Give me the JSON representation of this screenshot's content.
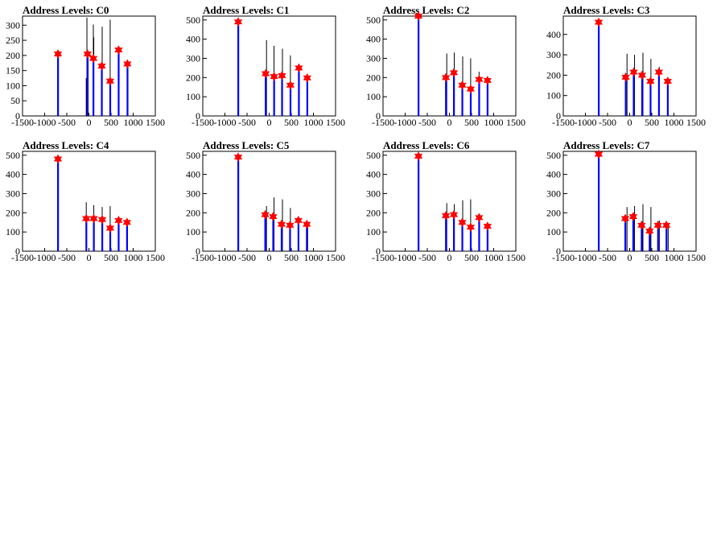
{
  "colors": {
    "histogram": "#0000ff",
    "spike": "#000000",
    "marker": "#ff0000",
    "frame": "#000000"
  },
  "chart_data": [
    {
      "type": "bar",
      "title": "Address Levels: C0",
      "xlim": [
        -1500,
        1500
      ],
      "ylim": [
        0,
        330
      ],
      "xticks": [
        -1500,
        -1000,
        -500,
        0,
        500,
        1000,
        1500
      ],
      "yticks": [
        0,
        50,
        100,
        150,
        200,
        250,
        300
      ],
      "peaks": [
        {
          "x": -700,
          "y": 205
        },
        {
          "x": -30,
          "y": 205
        },
        {
          "x": 100,
          "y": 190
        },
        {
          "x": 290,
          "y": 165
        },
        {
          "x": 480,
          "y": 115
        },
        {
          "x": 670,
          "y": 218
        },
        {
          "x": 870,
          "y": 172
        }
      ],
      "spikes": [
        {
          "x": -700,
          "y": 190
        },
        {
          "x": -60,
          "y": 125
        },
        {
          "x": -45,
          "y": 325
        },
        {
          "x": 100,
          "y": 302
        },
        {
          "x": 110,
          "y": 260
        },
        {
          "x": 300,
          "y": 295
        },
        {
          "x": 480,
          "y": 318
        },
        {
          "x": 670,
          "y": 50
        },
        {
          "x": 870,
          "y": 165
        }
      ]
    },
    {
      "type": "bar",
      "title": "Address Levels: C1",
      "xlim": [
        -1500,
        1500
      ],
      "ylim": [
        0,
        520
      ],
      "xticks": [
        -1500,
        -1000,
        -500,
        0,
        500,
        1000,
        1500
      ],
      "yticks": [
        0,
        100,
        200,
        300,
        400,
        500
      ],
      "peaks": [
        {
          "x": -700,
          "y": 490
        },
        {
          "x": -80,
          "y": 220
        },
        {
          "x": 110,
          "y": 205
        },
        {
          "x": 290,
          "y": 210
        },
        {
          "x": 480,
          "y": 160
        },
        {
          "x": 670,
          "y": 250
        },
        {
          "x": 860,
          "y": 198
        }
      ],
      "spikes": [
        {
          "x": -700,
          "y": 40
        },
        {
          "x": -60,
          "y": 395
        },
        {
          "x": 110,
          "y": 365
        },
        {
          "x": 300,
          "y": 350
        },
        {
          "x": 480,
          "y": 315
        },
        {
          "x": 670,
          "y": 40
        },
        {
          "x": 870,
          "y": 45
        }
      ]
    },
    {
      "type": "bar",
      "title": "Address Levels: C2",
      "xlim": [
        -1500,
        1500
      ],
      "ylim": [
        0,
        520
      ],
      "xticks": [
        -1500,
        -1000,
        -500,
        0,
        500,
        1000,
        1500
      ],
      "yticks": [
        0,
        100,
        200,
        300,
        400,
        500
      ],
      "peaks": [
        {
          "x": -700,
          "y": 520
        },
        {
          "x": -80,
          "y": 200
        },
        {
          "x": 100,
          "y": 225
        },
        {
          "x": 290,
          "y": 160
        },
        {
          "x": 480,
          "y": 140
        },
        {
          "x": 670,
          "y": 190
        },
        {
          "x": 860,
          "y": 185
        }
      ],
      "spikes": [
        {
          "x": -700,
          "y": 40
        },
        {
          "x": -60,
          "y": 325
        },
        {
          "x": 110,
          "y": 330
        },
        {
          "x": 300,
          "y": 310
        },
        {
          "x": 480,
          "y": 300
        },
        {
          "x": 670,
          "y": 230
        },
        {
          "x": 870,
          "y": 95
        }
      ]
    },
    {
      "type": "bar",
      "title": "Address Levels: C3",
      "xlim": [
        -1500,
        1500
      ],
      "ylim": [
        0,
        490
      ],
      "xticks": [
        -1500,
        -1000,
        -500,
        0,
        500,
        1000,
        1500
      ],
      "yticks": [
        0,
        100,
        200,
        300,
        400
      ],
      "peaks": [
        {
          "x": -700,
          "y": 460
        },
        {
          "x": -90,
          "y": 190
        },
        {
          "x": 90,
          "y": 215
        },
        {
          "x": 280,
          "y": 200
        },
        {
          "x": 470,
          "y": 170
        },
        {
          "x": 660,
          "y": 215
        },
        {
          "x": 860,
          "y": 170
        }
      ],
      "spikes": [
        {
          "x": -700,
          "y": 200
        },
        {
          "x": -60,
          "y": 305
        },
        {
          "x": 110,
          "y": 300
        },
        {
          "x": 300,
          "y": 310
        },
        {
          "x": 480,
          "y": 280
        },
        {
          "x": 670,
          "y": 240
        },
        {
          "x": 870,
          "y": 175
        }
      ]
    },
    {
      "type": "bar",
      "title": "Address Levels: C4",
      "xlim": [
        -1500,
        1500
      ],
      "ylim": [
        0,
        520
      ],
      "xticks": [
        -1500,
        -1000,
        -500,
        0,
        500,
        1000,
        1500
      ],
      "yticks": [
        0,
        100,
        200,
        300,
        400,
        500
      ],
      "peaks": [
        {
          "x": -700,
          "y": 480
        },
        {
          "x": -60,
          "y": 170
        },
        {
          "x": 110,
          "y": 170
        },
        {
          "x": 300,
          "y": 165
        },
        {
          "x": 480,
          "y": 120
        },
        {
          "x": 670,
          "y": 160
        },
        {
          "x": 860,
          "y": 150
        }
      ],
      "spikes": [
        {
          "x": -700,
          "y": 480
        },
        {
          "x": -60,
          "y": 255
        },
        {
          "x": 110,
          "y": 240
        },
        {
          "x": 300,
          "y": 230
        },
        {
          "x": 480,
          "y": 235
        },
        {
          "x": 670,
          "y": 170
        },
        {
          "x": 870,
          "y": 150
        }
      ]
    },
    {
      "type": "bar",
      "title": "Address Levels: C5",
      "xlim": [
        -1500,
        1500
      ],
      "ylim": [
        0,
        520
      ],
      "xticks": [
        -1500,
        -1000,
        -500,
        0,
        500,
        1000,
        1500
      ],
      "yticks": [
        0,
        100,
        200,
        300,
        400,
        500
      ],
      "peaks": [
        {
          "x": -700,
          "y": 490
        },
        {
          "x": -90,
          "y": 190
        },
        {
          "x": 90,
          "y": 180
        },
        {
          "x": 280,
          "y": 140
        },
        {
          "x": 470,
          "y": 135
        },
        {
          "x": 660,
          "y": 160
        },
        {
          "x": 850,
          "y": 140
        }
      ],
      "spikes": [
        {
          "x": -700,
          "y": 490
        },
        {
          "x": -60,
          "y": 235
        },
        {
          "x": 110,
          "y": 280
        },
        {
          "x": 300,
          "y": 270
        },
        {
          "x": 480,
          "y": 225
        },
        {
          "x": 670,
          "y": 160
        },
        {
          "x": 870,
          "y": 140
        }
      ]
    },
    {
      "type": "bar",
      "title": "Address Levels: C6",
      "xlim": [
        -1500,
        1500
      ],
      "ylim": [
        0,
        520
      ],
      "xticks": [
        -1500,
        -1000,
        -500,
        0,
        500,
        1000,
        1500
      ],
      "yticks": [
        0,
        100,
        200,
        300,
        400,
        500
      ],
      "peaks": [
        {
          "x": -700,
          "y": 495
        },
        {
          "x": -80,
          "y": 185
        },
        {
          "x": 100,
          "y": 190
        },
        {
          "x": 290,
          "y": 150
        },
        {
          "x": 480,
          "y": 125
        },
        {
          "x": 670,
          "y": 175
        },
        {
          "x": 860,
          "y": 130
        }
      ],
      "spikes": [
        {
          "x": -700,
          "y": 40
        },
        {
          "x": -60,
          "y": 250
        },
        {
          "x": 110,
          "y": 245
        },
        {
          "x": 300,
          "y": 265
        },
        {
          "x": 480,
          "y": 270
        },
        {
          "x": 670,
          "y": 175
        },
        {
          "x": 870,
          "y": 130
        }
      ]
    },
    {
      "type": "bar",
      "title": "Address Levels: C7",
      "xlim": [
        -1500,
        1500
      ],
      "ylim": [
        0,
        520
      ],
      "xticks": [
        -1500,
        -1000,
        -500,
        0,
        500,
        1000,
        1500
      ],
      "yticks": [
        0,
        100,
        200,
        300,
        400,
        500
      ],
      "peaks": [
        {
          "x": -700,
          "y": 505
        },
        {
          "x": -100,
          "y": 170
        },
        {
          "x": 80,
          "y": 180
        },
        {
          "x": 270,
          "y": 135
        },
        {
          "x": 450,
          "y": 105
        },
        {
          "x": 640,
          "y": 135
        },
        {
          "x": 830,
          "y": 135
        }
      ],
      "spikes": [
        {
          "x": -700,
          "y": 75
        },
        {
          "x": -60,
          "y": 230
        },
        {
          "x": 110,
          "y": 235
        },
        {
          "x": 300,
          "y": 245
        },
        {
          "x": 480,
          "y": 230
        },
        {
          "x": 670,
          "y": 160
        },
        {
          "x": 870,
          "y": 135
        }
      ]
    }
  ]
}
